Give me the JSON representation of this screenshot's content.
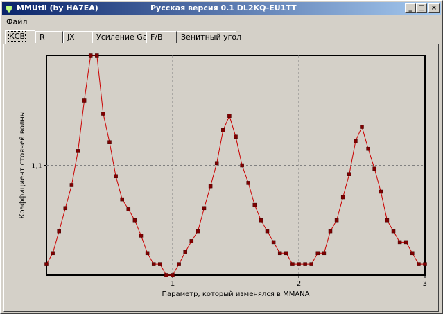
{
  "window": {
    "title": "MMUtil (by HA7EA)",
    "subtitle": "Русская версия 0.1 DL2KQ-EU1TT",
    "icon": "antenna-icon",
    "accent": "#0a246a"
  },
  "menu": {
    "file_label": "Файл"
  },
  "tabs": [
    {
      "label": "КСВ",
      "active": true
    },
    {
      "label": "R",
      "active": false
    },
    {
      "label": "jX",
      "active": false
    },
    {
      "label": "Усиление Ga",
      "active": false
    },
    {
      "label": "F/B",
      "active": false
    },
    {
      "label": "Зенитный угол",
      "active": false
    }
  ],
  "chart_data": {
    "type": "line",
    "xlabel": "Параметр, который изменялся в MMANA",
    "ylabel": "Коэффициент стоячей волны",
    "x_ticks": [
      "1",
      "2",
      "3"
    ],
    "y_ticks": [
      "1,1"
    ],
    "xlim": [
      0,
      3
    ],
    "ylim": [
      1.0,
      1.2
    ],
    "grid": "dashed",
    "line_color": "#cc0000",
    "marker_color": "#800000",
    "series": [
      {
        "x": [
          0,
          0.05,
          0.1,
          0.15,
          0.2,
          0.25,
          0.3,
          0.35,
          0.4,
          0.45,
          0.5,
          0.55,
          0.6,
          0.65,
          0.7,
          0.75,
          0.8,
          0.85,
          0.9,
          0.95,
          1.0,
          1.05,
          1.1,
          1.15,
          1.2,
          1.25,
          1.3,
          1.35,
          1.4,
          1.45,
          1.5,
          1.55,
          1.6,
          1.65,
          1.7,
          1.75,
          1.8,
          1.85,
          1.9,
          1.95,
          2.0,
          2.05,
          2.1,
          2.15,
          2.2,
          2.25,
          2.3,
          2.35,
          2.4,
          2.45,
          2.5,
          2.55,
          2.6,
          2.65,
          2.7,
          2.75,
          2.8,
          2.85,
          2.9,
          2.95,
          3.0
        ],
        "y": [
          1.01,
          1.02,
          1.04,
          1.061,
          1.082,
          1.113,
          1.159,
          1.2,
          1.2,
          1.147,
          1.121,
          1.09,
          1.069,
          1.06,
          1.05,
          1.036,
          1.02,
          1.01,
          1.01,
          1.0,
          1.0,
          1.01,
          1.021,
          1.031,
          1.04,
          1.061,
          1.081,
          1.102,
          1.132,
          1.145,
          1.126,
          1.1,
          1.084,
          1.064,
          1.05,
          1.04,
          1.03,
          1.02,
          1.02,
          1.01,
          1.01,
          1.01,
          1.01,
          1.02,
          1.02,
          1.04,
          1.05,
          1.071,
          1.092,
          1.122,
          1.135,
          1.115,
          1.097,
          1.076,
          1.05,
          1.04,
          1.03,
          1.03,
          1.02,
          1.01,
          1.01
        ]
      }
    ]
  }
}
